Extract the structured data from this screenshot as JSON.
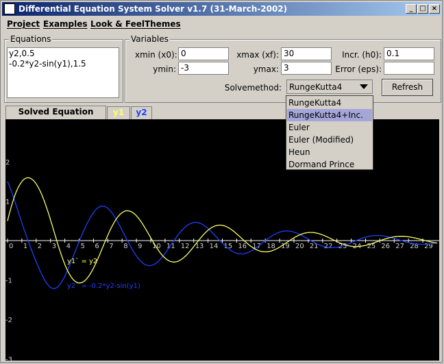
{
  "window": {
    "title": "Differential Equation System Solver v1.7 (31-March-2002)",
    "minimize": "_",
    "maximize": "□",
    "close": "×"
  },
  "menu": {
    "items": [
      "Project",
      "Examples",
      "Look & Feel",
      "Themes"
    ]
  },
  "equations": {
    "label": "Equations",
    "lines": [
      "y2,0.5",
      "-0.2*y2-sin(y1),1.5"
    ]
  },
  "variables": {
    "label": "Variables",
    "xmin_label": "xmin (x0):",
    "xmin": "0",
    "xmax_label": "xmax (xf):",
    "xmax": "30",
    "incr_label": "Incr. (h0):",
    "incr": "0.1",
    "ymin_label": "ymin:",
    "ymin": "-3",
    "ymax_label": "ymax:",
    "ymax": "3",
    "error_label": "Error (eps):",
    "error": "",
    "solvemethod_label": "Solvemethod:",
    "solvemethod": "RungeKutta4",
    "refresh_label": "Refresh"
  },
  "dropdown": {
    "options": [
      "RungeKutta4",
      "RungeKutta4+Inc.",
      "Euler",
      "Euler (Modified)",
      "Heun",
      "Dormand Prince"
    ],
    "highlighted_index": 1
  },
  "tabs": [
    {
      "label": "Solved Equation Graph"
    },
    {
      "label": "y1"
    },
    {
      "label": "y2"
    }
  ],
  "chart_data": {
    "type": "line",
    "title": "",
    "xlabel": "",
    "ylabel": "",
    "xlim": [
      0,
      30
    ],
    "ylim": [
      -3,
      3
    ],
    "x_ticks": [
      0,
      1,
      2,
      3,
      4,
      5,
      6,
      7,
      8,
      9,
      10,
      11,
      12,
      13,
      14,
      15,
      16,
      17,
      18,
      19,
      20,
      21,
      22,
      23,
      24,
      25,
      26,
      27,
      28,
      29
    ],
    "y_ticks": [
      2,
      1,
      -1,
      -2,
      -3
    ],
    "grid": false,
    "series": [
      {
        "name": "y1` = y2",
        "color": "#ffff66"
      },
      {
        "name": "y2` = -0.2*y2-sin(y1)",
        "color": "#2040ff"
      }
    ]
  },
  "colors": {
    "titlebar_start": "#0a246a",
    "titlebar_end": "#a6caf0",
    "plot_bg": "#000000",
    "y1_tab": "#ffff66",
    "y2_tab": "#2040ff",
    "dropdown_highlight": "#a4a6d8"
  }
}
